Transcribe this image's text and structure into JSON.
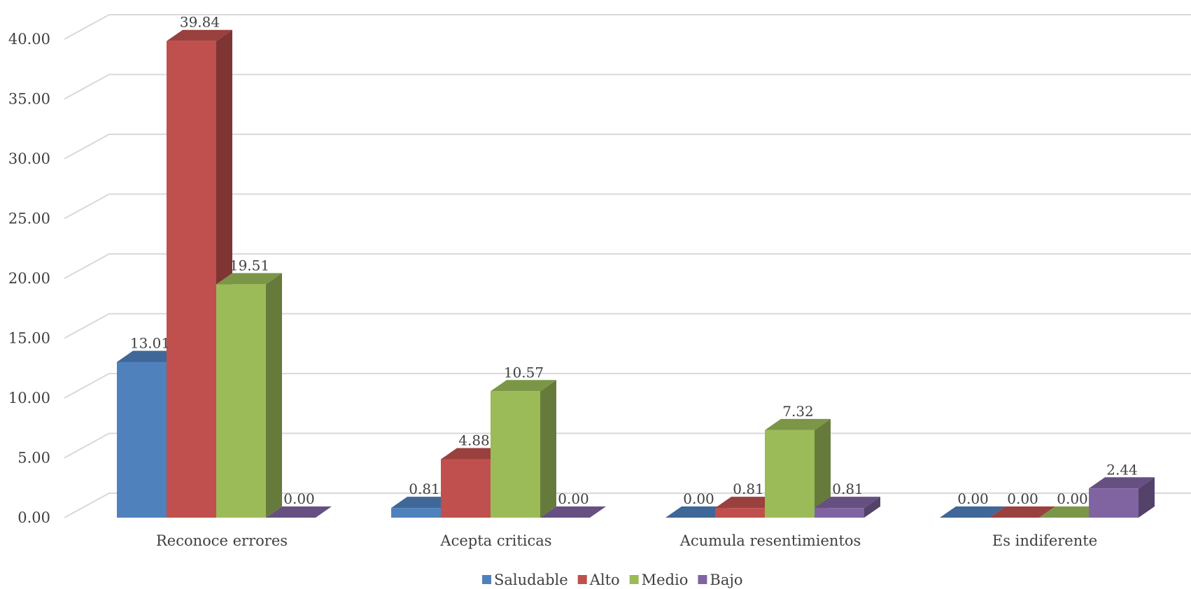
{
  "chart_data": {
    "type": "bar",
    "categories": [
      "Reconoce errores",
      "Acepta criticas",
      "Acumula resentimientos",
      "Es indiferente"
    ],
    "series": [
      {
        "name": "Saludable",
        "values": [
          13.01,
          0.81,
          0.0,
          0.0
        ],
        "color": "#4f81bd"
      },
      {
        "name": "Alto",
        "values": [
          39.84,
          4.88,
          0.81,
          0.0
        ],
        "color": "#c0504d"
      },
      {
        "name": "Medio",
        "values": [
          19.51,
          10.57,
          7.32,
          0.0
        ],
        "color": "#9bbb59"
      },
      {
        "name": "Bajo",
        "values": [
          0.0,
          0.0,
          0.81,
          2.44
        ],
        "color": "#8064a2"
      }
    ],
    "yticks": [
      "0.00",
      "5.00",
      "10.00",
      "15.00",
      "20.00",
      "25.00",
      "30.00",
      "35.00",
      "40.00"
    ],
    "ylim": [
      0,
      42
    ],
    "grid": true,
    "legend_position": "bottom",
    "style": "3d-clustered-column",
    "title": "",
    "xlabel": "",
    "ylabel": ""
  }
}
